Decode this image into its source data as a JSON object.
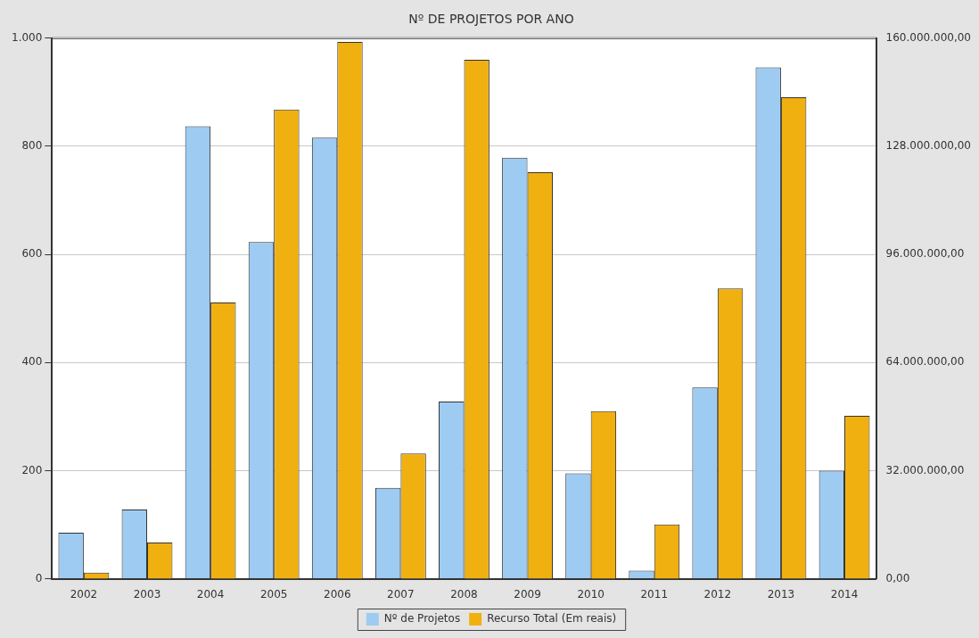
{
  "chart_data": {
    "type": "bar",
    "title": "Nº DE PROJETOS POR ANO",
    "categories": [
      "2002",
      "2003",
      "2004",
      "2005",
      "2006",
      "2007",
      "2008",
      "2009",
      "2010",
      "2011",
      "2012",
      "2013",
      "2014"
    ],
    "series": [
      {
        "name": "Nº de Projetos",
        "color": "#9ecbf2",
        "values": [
          85,
          128,
          837,
          623,
          816,
          168,
          328,
          779,
          195,
          15,
          354,
          946,
          200
        ]
      },
      {
        "name": "Recurso Total (Em reais)",
        "color": "#f0b010",
        "axis": "y2",
        "values": [
          1800000,
          10700000,
          81800000,
          138900000,
          158900000,
          37100000,
          153600000,
          120300000,
          49600000,
          16100000,
          85900000,
          142500000,
          48200000
        ]
      }
    ],
    "ylim": [
      0,
      1000
    ],
    "yticks": [
      0,
      200,
      400,
      600,
      800,
      {
        "value": 1000,
        "label": "1.000"
      }
    ],
    "y2lim": [
      0,
      160000000
    ],
    "y2ticks": [
      {
        "value": 0,
        "label": "0,00"
      },
      {
        "value": 32000000,
        "label": "32.000.000,00"
      },
      {
        "value": 64000000,
        "label": "64.000.000,00"
      },
      {
        "value": 96000000,
        "label": "96.000.000,00"
      },
      {
        "value": 128000000,
        "label": "128.000.000,00"
      },
      {
        "value": 160000000,
        "label": "160.000.000,00"
      }
    ],
    "grid": "y",
    "legend": "bottom"
  }
}
